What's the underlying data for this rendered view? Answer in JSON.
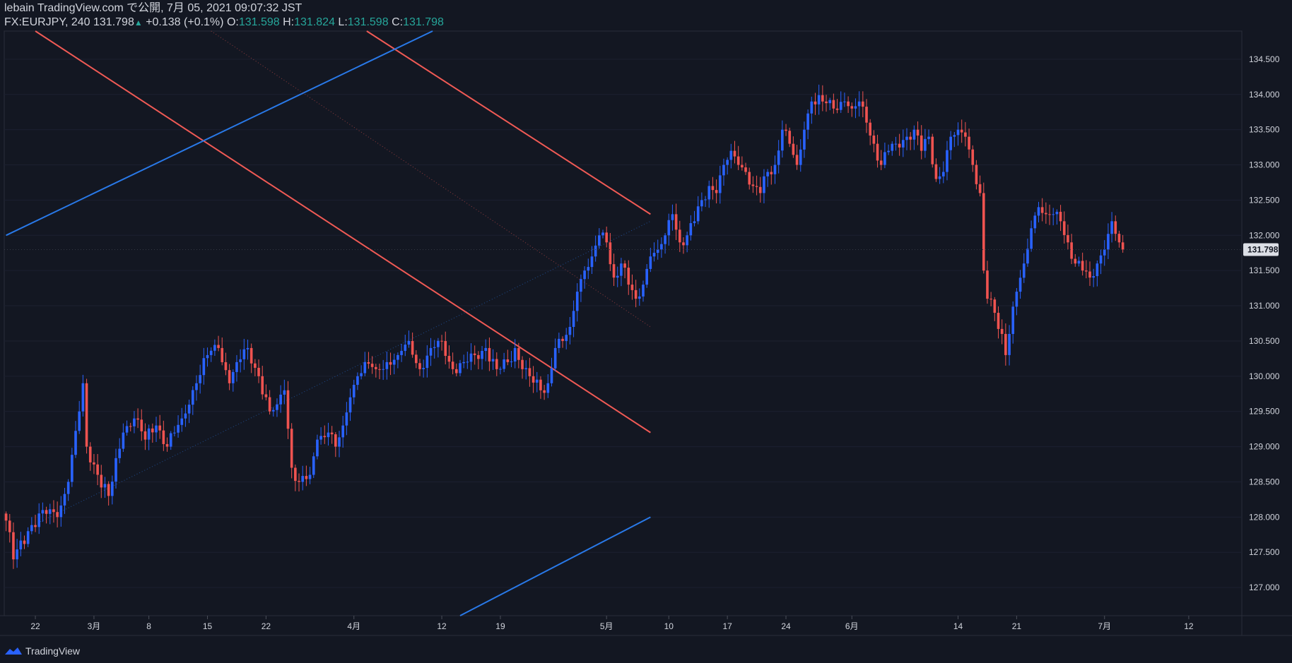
{
  "header": {
    "line1": "lebain TradingView.com で公開, 7月 05, 2021 09:07:32 JST",
    "symbol": "FX:EURJPY, 240",
    "last": "131.798",
    "up_arrow": "▲",
    "change": "+0.138 (+0.1%)",
    "o_label": "O:",
    "o_value": "131.598",
    "h_label": "H:",
    "h_value": "131.824",
    "l_label": "L:",
    "l_value": "131.598",
    "c_label": "C:",
    "c_value": "131.798"
  },
  "footer": {
    "brand": "TradingView",
    "logo_icon": "tradingview-logo-icon"
  },
  "colors": {
    "background": "#131722",
    "bull": "#2962ff",
    "bear": "#ef5350",
    "trend_red": "#f05a55",
    "trend_blue": "#2979e8",
    "price_label_bg": "#dcdfe6"
  },
  "chart_data": {
    "type": "candlestick",
    "symbol": "FX:EURJPY",
    "interval": "240",
    "ylim": [
      126.6,
      134.9
    ],
    "price_ticks": [
      134.5,
      134.0,
      133.5,
      133.0,
      132.5,
      132.0,
      131.5,
      131.0,
      130.5,
      130.0,
      129.5,
      129.0,
      128.5,
      128.0,
      127.5,
      127.0
    ],
    "price_tick_labels": [
      "134.500",
      "134.000",
      "133.500",
      "133.000",
      "132.500",
      "132.000",
      "131.500",
      "131.000",
      "130.500",
      "130.000",
      "129.500",
      "129.000",
      "128.500",
      "128.000",
      "127.500",
      "127.000"
    ],
    "current_price": 131.798,
    "current_price_label": "131.798",
    "time_ticks": [
      {
        "label": "22",
        "index": 8
      },
      {
        "label": "3月",
        "index": 24
      },
      {
        "label": "8",
        "index": 39
      },
      {
        "label": "15",
        "index": 55
      },
      {
        "label": "22",
        "index": 71
      },
      {
        "label": "4月",
        "index": 95
      },
      {
        "label": "12",
        "index": 119
      },
      {
        "label": "19",
        "index": 135
      },
      {
        "label": "5月",
        "index": 164
      },
      {
        "label": "10",
        "index": 181
      },
      {
        "label": "17",
        "index": 197
      },
      {
        "label": "24",
        "index": 213
      },
      {
        "label": "6月",
        "index": 231
      },
      {
        "label": "14",
        "index": 260
      },
      {
        "label": "21",
        "index": 276
      },
      {
        "label": "7月",
        "index": 300
      },
      {
        "label": "12",
        "index": 323
      }
    ],
    "bars_total_slots": 338,
    "anchors": [
      [
        0,
        128.0
      ],
      [
        2,
        127.4
      ],
      [
        6,
        127.8
      ],
      [
        10,
        128.1
      ],
      [
        14,
        128.0
      ],
      [
        17,
        128.5
      ],
      [
        20,
        129.5
      ],
      [
        21,
        129.9
      ],
      [
        22,
        129.0
      ],
      [
        25,
        128.6
      ],
      [
        28,
        128.3
      ],
      [
        32,
        129.2
      ],
      [
        35,
        129.4
      ],
      [
        38,
        129.1
      ],
      [
        41,
        129.3
      ],
      [
        44,
        129.0
      ],
      [
        48,
        129.4
      ],
      [
        52,
        129.9
      ],
      [
        55,
        130.3
      ],
      [
        58,
        130.4
      ],
      [
        61,
        129.9
      ],
      [
        63,
        130.2
      ],
      [
        66,
        130.4
      ],
      [
        69,
        130.0
      ],
      [
        72,
        129.5
      ],
      [
        74,
        129.6
      ],
      [
        76,
        129.8
      ],
      [
        78,
        128.7
      ],
      [
        80,
        128.5
      ],
      [
        83,
        128.6
      ],
      [
        85,
        129.1
      ],
      [
        88,
        129.2
      ],
      [
        90,
        129.0
      ],
      [
        92,
        129.3
      ],
      [
        94,
        129.7
      ],
      [
        96,
        130.0
      ],
      [
        98,
        130.2
      ],
      [
        101,
        130.1
      ],
      [
        104,
        130.2
      ],
      [
        107,
        130.3
      ],
      [
        110,
        130.5
      ],
      [
        113,
        130.1
      ],
      [
        116,
        130.4
      ],
      [
        119,
        130.5
      ],
      [
        122,
        130.1
      ],
      [
        125,
        130.2
      ],
      [
        128,
        130.3
      ],
      [
        131,
        130.4
      ],
      [
        134,
        130.1
      ],
      [
        137,
        130.2
      ],
      [
        139,
        130.4
      ],
      [
        141,
        130.1
      ],
      [
        143,
        130.0
      ],
      [
        146,
        129.8
      ],
      [
        148,
        129.9
      ],
      [
        150,
        130.4
      ],
      [
        152,
        130.5
      ],
      [
        154,
        130.7
      ],
      [
        156,
        131.2
      ],
      [
        158,
        131.5
      ],
      [
        160,
        131.7
      ],
      [
        162,
        132.0
      ],
      [
        164,
        131.9
      ],
      [
        166,
        131.4
      ],
      [
        168,
        131.6
      ],
      [
        170,
        131.3
      ],
      [
        172,
        131.1
      ],
      [
        174,
        131.3
      ],
      [
        176,
        131.7
      ],
      [
        178,
        131.8
      ],
      [
        180,
        132.0
      ],
      [
        182,
        132.3
      ],
      [
        184,
        131.9
      ],
      [
        186,
        132.0
      ],
      [
        188,
        132.2
      ],
      [
        190,
        132.5
      ],
      [
        192,
        132.7
      ],
      [
        194,
        132.6
      ],
      [
        196,
        133.0
      ],
      [
        198,
        133.2
      ],
      [
        200,
        133.0
      ],
      [
        202,
        132.9
      ],
      [
        204,
        132.7
      ],
      [
        206,
        132.6
      ],
      [
        208,
        132.9
      ],
      [
        210,
        133.0
      ],
      [
        212,
        133.5
      ],
      [
        214,
        133.3
      ],
      [
        216,
        133.0
      ],
      [
        218,
        133.5
      ],
      [
        220,
        133.9
      ],
      [
        223,
        133.9
      ],
      [
        226,
        133.8
      ],
      [
        229,
        133.9
      ],
      [
        231,
        133.8
      ],
      [
        233,
        133.9
      ],
      [
        235,
        133.6
      ],
      [
        237,
        133.3
      ],
      [
        239,
        133.0
      ],
      [
        241,
        133.2
      ],
      [
        243,
        133.3
      ],
      [
        246,
        133.4
      ],
      [
        248,
        133.5
      ],
      [
        250,
        133.2
      ],
      [
        252,
        133.4
      ],
      [
        254,
        132.8
      ],
      [
        256,
        132.9
      ],
      [
        258,
        133.4
      ],
      [
        260,
        133.5
      ],
      [
        262,
        133.4
      ],
      [
        264,
        133.0
      ],
      [
        266,
        132.6
      ],
      [
        267,
        131.5
      ],
      [
        268,
        131.1
      ],
      [
        270,
        130.9
      ],
      [
        272,
        130.6
      ],
      [
        273,
        130.3
      ],
      [
        274,
        130.6
      ],
      [
        276,
        131.2
      ],
      [
        278,
        131.6
      ],
      [
        280,
        132.1
      ],
      [
        282,
        132.4
      ],
      [
        284,
        132.3
      ],
      [
        286,
        132.3
      ],
      [
        288,
        132.2
      ],
      [
        290,
        131.9
      ],
      [
        292,
        131.6
      ],
      [
        294,
        131.5
      ],
      [
        296,
        131.4
      ],
      [
        298,
        131.6
      ],
      [
        300,
        131.8
      ],
      [
        302,
        132.2
      ],
      [
        304,
        131.9
      ],
      [
        305,
        131.8
      ]
    ],
    "trendlines": [
      {
        "name": "red-upper-channel",
        "color": "red",
        "from": [
          98.5,
          134.9
        ],
        "to": [
          176,
          132.3
        ]
      },
      {
        "name": "red-lower-channel",
        "color": "red",
        "from": [
          8,
          134.9
        ],
        "to": [
          176,
          129.2
        ]
      },
      {
        "name": "blue-rising-line",
        "color": "blue",
        "from": [
          0,
          132.0
        ],
        "to": [
          116.5,
          134.9
        ]
      },
      {
        "name": "blue-lower-line",
        "color": "blue",
        "from": [
          124,
          126.6
        ],
        "to": [
          176,
          128.0
        ]
      },
      {
        "name": "red-dotted-midline",
        "color": "red",
        "dotted": true,
        "from": [
          56,
          134.9
        ],
        "to": [
          176,
          130.7
        ]
      },
      {
        "name": "blue-dotted-rising",
        "color": "blue",
        "dotted": true,
        "from": [
          8,
          127.9
        ],
        "to": [
          176,
          132.2
        ]
      }
    ]
  }
}
